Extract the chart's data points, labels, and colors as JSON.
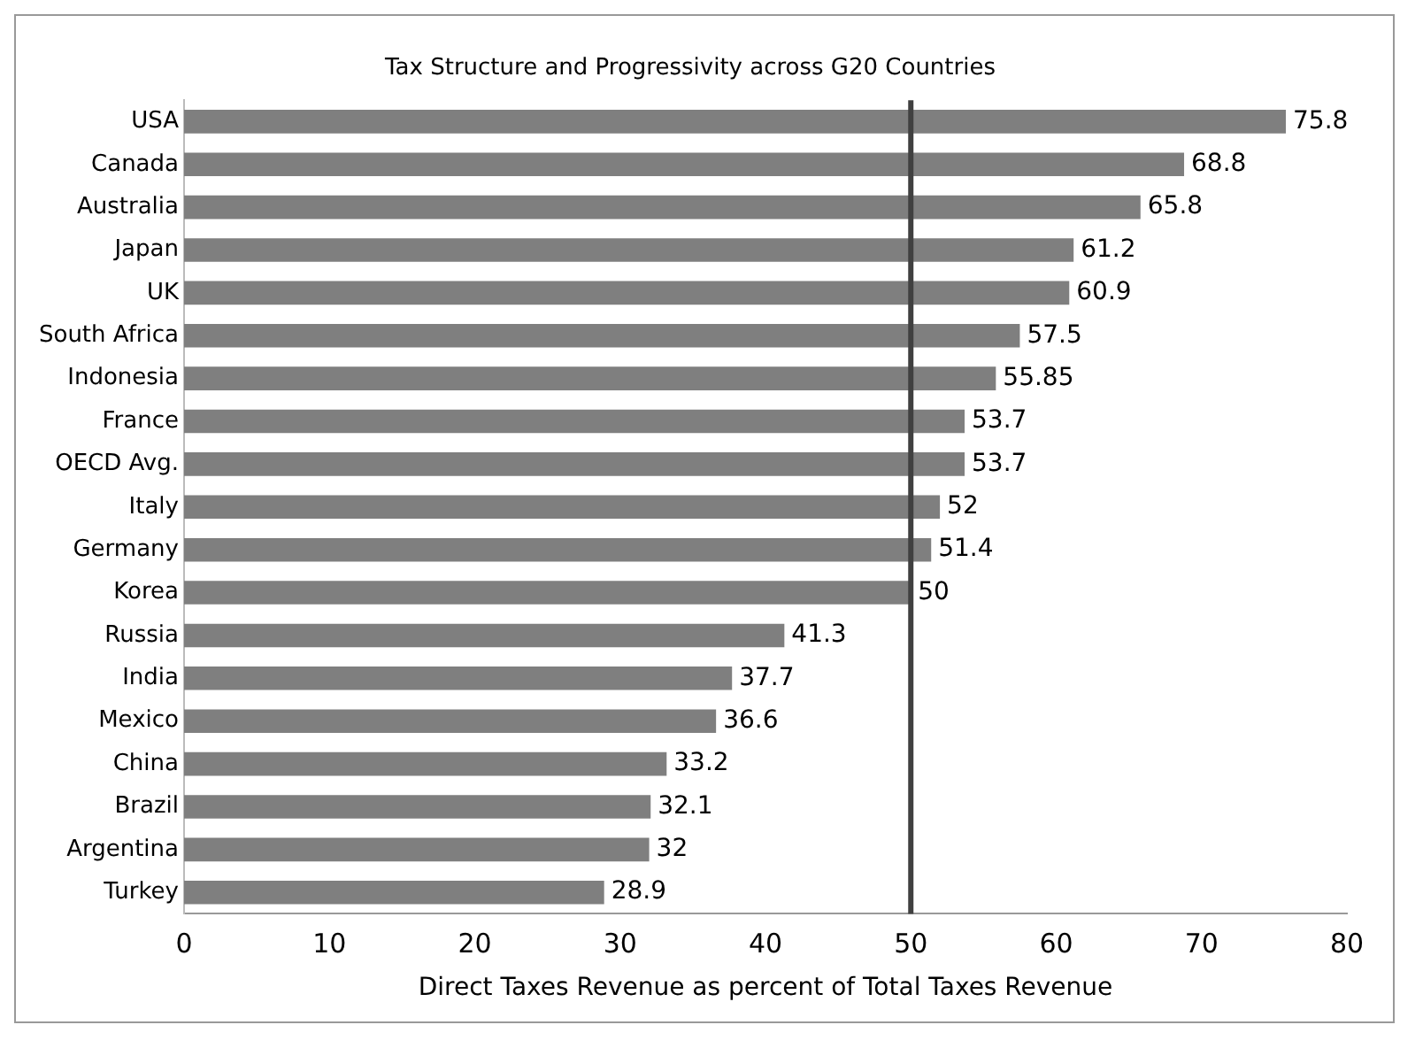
{
  "chart_data": {
    "type": "bar",
    "orientation": "horizontal",
    "title": "Tax Structure and Progressivity across G20 Countries",
    "xlabel": "Direct Taxes Revenue as percent of Total Taxes Revenue",
    "categories": [
      "USA",
      "Canada",
      "Australia",
      "Japan",
      "UK",
      "South Africa",
      "Indonesia",
      "France",
      "OECD Avg.",
      "Italy",
      "Germany",
      "Korea",
      "Russia",
      "India",
      "Mexico",
      "China",
      "Brazil",
      "Argentina",
      "Turkey"
    ],
    "values": [
      75.8,
      68.8,
      65.8,
      61.2,
      60.9,
      57.5,
      55.85,
      53.7,
      53.7,
      52,
      51.4,
      50,
      41.3,
      37.7,
      36.6,
      33.2,
      32.1,
      32,
      28.9
    ],
    "color": "#7f7f7f",
    "xlim": [
      0,
      80
    ],
    "xticks": [
      0,
      10,
      20,
      30,
      40,
      50,
      60,
      70,
      80
    ],
    "grid": false,
    "data_labels": true,
    "ref_lines": [
      {
        "axis": "x",
        "value": 50,
        "color": "#404040"
      }
    ]
  }
}
